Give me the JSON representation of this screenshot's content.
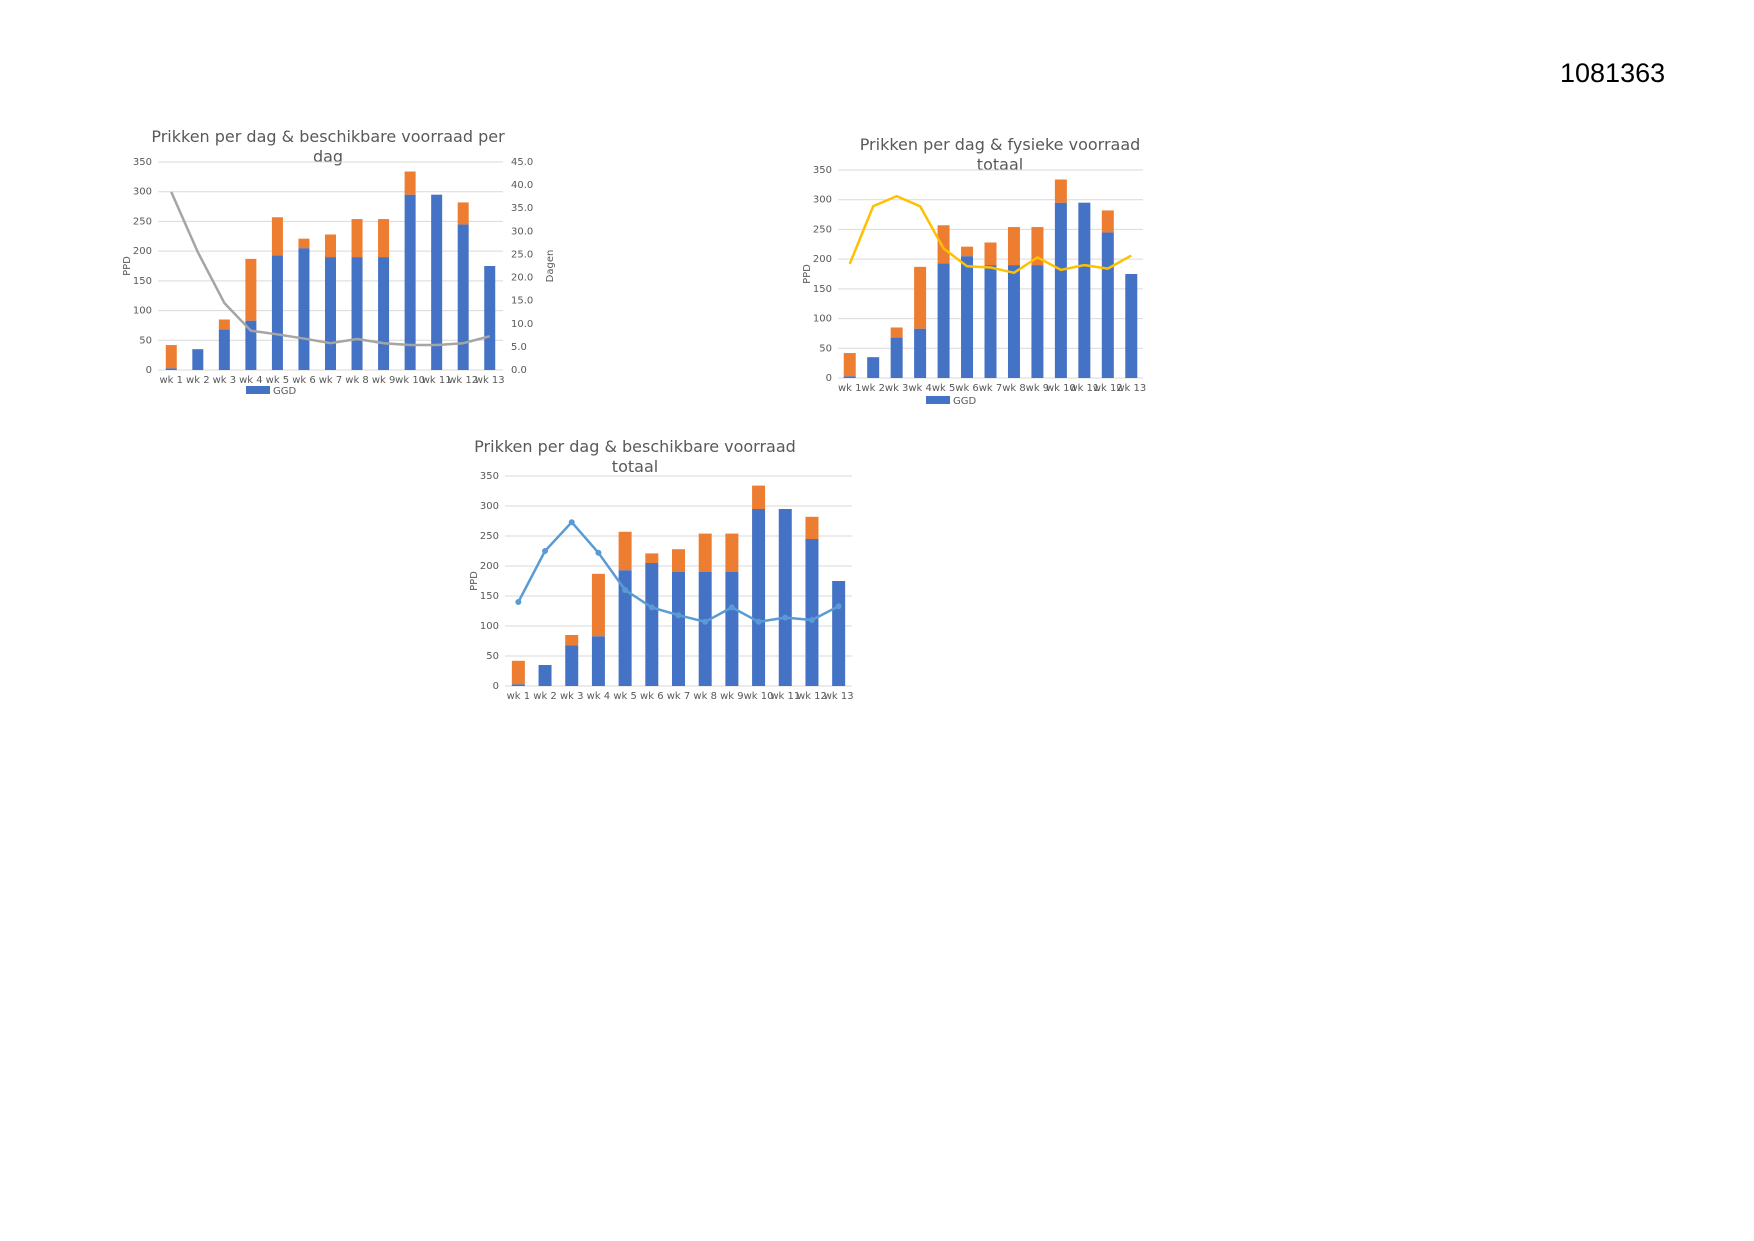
{
  "doc_id": "1081363",
  "chart_data": [
    {
      "type": "bar",
      "stacked": true,
      "title": [
        "Prikken per dag & beschikbare voorraad per",
        "dag"
      ],
      "ylabel": "PPD",
      "y2label": "Dagen",
      "ylim": [
        0,
        350
      ],
      "y2lim": [
        0,
        45
      ],
      "yticks": [
        "0",
        "50",
        "100",
        "150",
        "200",
        "250",
        "300",
        "350"
      ],
      "y2ticks": [
        "0.0",
        "5.0",
        "10.0",
        "15.0",
        "20.0",
        "25.0",
        "30.0",
        "35.0",
        "40.0",
        "45.0"
      ],
      "grid": true,
      "legend": {
        "position": "bottom-left",
        "entries": [
          "GGD"
        ]
      },
      "categories": [
        "wk 1",
        "wk 2",
        "wk 3",
        "wk 4",
        "wk 5",
        "wk 6",
        "wk 7",
        "wk 8",
        "wk 9",
        "wk 10",
        "wk 11",
        "wk 12",
        "wk 13"
      ],
      "series": [
        {
          "name": "GGD",
          "kind": "bar",
          "color": "#4472c4",
          "values": [
            3,
            35,
            68,
            83,
            193,
            205,
            190,
            190,
            190,
            295,
            295,
            245,
            175
          ]
        },
        {
          "kind": "bar",
          "color": "#ed7d31",
          "values": [
            39,
            0,
            17,
            104,
            64,
            16,
            38,
            64,
            64,
            39,
            0,
            37,
            0
          ]
        },
        {
          "kind": "line",
          "axis": "right",
          "color": "#a5a5a5",
          "values": [
            38.5,
            25.5,
            14.5,
            8.5,
            7.7,
            6.8,
            5.8,
            6.7,
            5.8,
            5.4,
            5.4,
            5.8,
            7.3
          ]
        }
      ]
    },
    {
      "type": "bar",
      "stacked": true,
      "title": [
        "Prikken per dag & fysieke voorraad",
        "totaal"
      ],
      "ylabel": "PPD",
      "ylim": [
        0,
        350
      ],
      "yticks": [
        "0",
        "50",
        "100",
        "150",
        "200",
        "250",
        "300",
        "350"
      ],
      "grid": true,
      "legend": {
        "position": "bottom-left",
        "entries": [
          "GGD"
        ]
      },
      "categories": [
        "wk 1",
        "wk 2",
        "wk 3",
        "wk 4",
        "wk 5",
        "wk 6",
        "wk 7",
        "wk 8",
        "wk 9",
        "wk 10",
        "wk 11",
        "wk 12",
        "wk 13"
      ],
      "series": [
        {
          "name": "GGD",
          "kind": "bar",
          "color": "#4472c4",
          "values": [
            3,
            35,
            68,
            83,
            193,
            205,
            190,
            190,
            190,
            295,
            295,
            245,
            175
          ]
        },
        {
          "kind": "bar",
          "color": "#ed7d31",
          "values": [
            39,
            0,
            17,
            104,
            64,
            16,
            38,
            64,
            64,
            39,
            0,
            37,
            0
          ]
        },
        {
          "kind": "line",
          "color": "#ffc000",
          "values": [
            192,
            289,
            306,
            289,
            218,
            188,
            186,
            177,
            203,
            182,
            190,
            184,
            206
          ]
        }
      ]
    },
    {
      "type": "bar",
      "stacked": true,
      "title": [
        "Prikken per dag & beschikbare voorraad",
        "totaal"
      ],
      "ylabel": "PPD",
      "ylim": [
        0,
        350
      ],
      "yticks": [
        "0",
        "50",
        "100",
        "150",
        "200",
        "250",
        "300",
        "350"
      ],
      "grid": true,
      "categories": [
        "wk 1",
        "wk 2",
        "wk 3",
        "wk 4",
        "wk 5",
        "wk 6",
        "wk 7",
        "wk 8",
        "wk 9",
        "wk 10",
        "wk 11",
        "wk 12",
        "wk 13"
      ],
      "series": [
        {
          "kind": "bar",
          "color": "#4472c4",
          "values": [
            3,
            35,
            68,
            83,
            193,
            205,
            190,
            190,
            190,
            295,
            295,
            245,
            175
          ]
        },
        {
          "kind": "bar",
          "color": "#ed7d31",
          "values": [
            39,
            0,
            17,
            104,
            64,
            16,
            38,
            64,
            64,
            39,
            0,
            37,
            0
          ]
        },
        {
          "kind": "line",
          "color": "#5b9bd5",
          "markers": true,
          "values": [
            140,
            225,
            273,
            222,
            160,
            131,
            118,
            107,
            131,
            107,
            114,
            110,
            133
          ]
        }
      ]
    }
  ]
}
